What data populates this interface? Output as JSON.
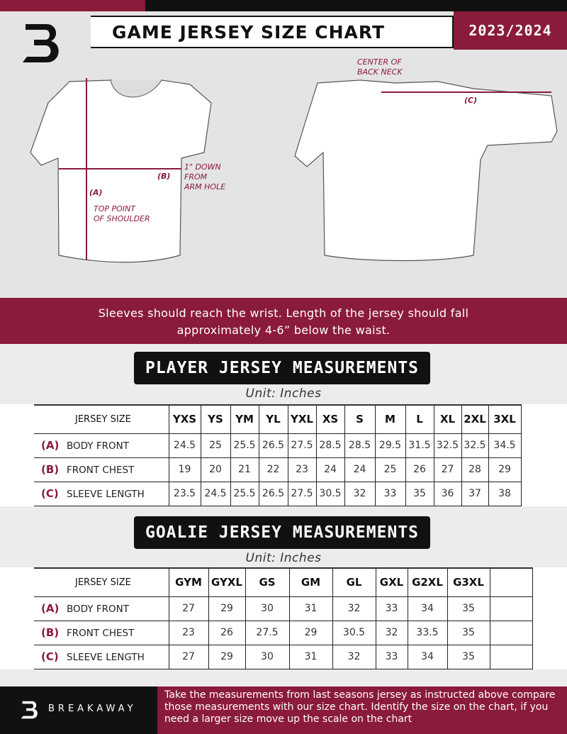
{
  "header": {
    "title": "GAME JERSEY SIZE CHART",
    "season": "2023/2024",
    "logo": "B"
  },
  "diagram": {
    "center_back_neck": [
      "CENTER OF",
      "BACK NECK"
    ],
    "label_a": "(A)",
    "label_b": "(B)",
    "label_c": "(C)",
    "one_inch": [
      "1\" DOWN",
      "FROM",
      "ARM HOLE"
    ],
    "top_shoulder": [
      "TOP POINT",
      "OF SHOULDER"
    ]
  },
  "banner": {
    "line1": "Sleeves should reach the wrist. Length of the jersey should fall",
    "line2": "approximately 4-6” below the waist."
  },
  "player": {
    "title": "PLAYER JERSEY MEASUREMENTS",
    "unit": "Unit: Inches",
    "size_label": "JERSEY SIZE",
    "sizes": [
      "YXS",
      "YS",
      "YM",
      "YL",
      "YXL",
      "XS",
      "S",
      "M",
      "L",
      "XL",
      "2XL",
      "3XL"
    ],
    "rows": [
      {
        "key": "(A)",
        "label": "BODY FRONT",
        "values": [
          "24.5",
          "25",
          "25.5",
          "26.5",
          "27.5",
          "28.5",
          "28.5",
          "29.5",
          "31.5",
          "32.5",
          "32.5",
          "34.5"
        ]
      },
      {
        "key": "(B)",
        "label": "FRONT CHEST",
        "values": [
          "19",
          "20",
          "21",
          "22",
          "23",
          "24",
          "24",
          "25",
          "26",
          "27",
          "28",
          "29"
        ]
      },
      {
        "key": "(C)",
        "label": "SLEEVE LENGTH",
        "values": [
          "23.5",
          "24.5",
          "25.5",
          "26.5",
          "27.5",
          "30.5",
          "32",
          "33",
          "35",
          "36",
          "37",
          "38"
        ]
      }
    ]
  },
  "goalie": {
    "title": "GOALIE JERSEY MEASUREMENTS",
    "unit": "Unit: Inches",
    "size_label": "JERSEY SIZE",
    "sizes": [
      "GYM",
      "GYXL",
      "GS",
      "GM",
      "GL",
      "GXL",
      "G2XL",
      "G3XL",
      ""
    ],
    "rows": [
      {
        "key": "(A)",
        "label": "BODY FRONT",
        "values": [
          "27",
          "29",
          "30",
          "31",
          "32",
          "33",
          "34",
          "35",
          ""
        ]
      },
      {
        "key": "(B)",
        "label": "FRONT CHEST",
        "values": [
          "23",
          "26",
          "27.5",
          "29",
          "30.5",
          "32",
          "33.5",
          "35",
          ""
        ]
      },
      {
        "key": "(C)",
        "label": "SLEEVE LENGTH",
        "values": [
          "27",
          "29",
          "30",
          "31",
          "32",
          "33",
          "34",
          "35",
          ""
        ]
      }
    ]
  },
  "footer": {
    "brand": "BREAKAWAY",
    "text": "Take the measurements from last seasons jersey as instructed above compare those measurements  with our size chart. Identify the size on the chart, if you need a larger size move up the scale on the chart"
  },
  "colors": {
    "maroon": "#8a1b3a",
    "black": "#111111"
  }
}
